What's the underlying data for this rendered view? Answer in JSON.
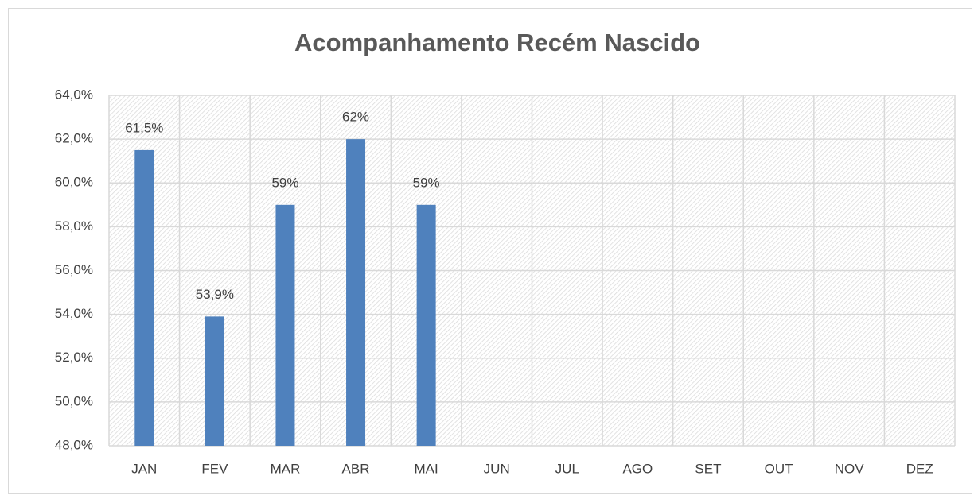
{
  "chart_data": {
    "type": "bar",
    "title": "Acompanhamento Recém Nascido",
    "categories": [
      "JAN",
      "FEV",
      "MAR",
      "ABR",
      "MAI",
      "JUN",
      "JUL",
      "AGO",
      "SET",
      "OUT",
      "NOV",
      "DEZ"
    ],
    "values": [
      61.5,
      53.9,
      59,
      62,
      59,
      null,
      null,
      null,
      null,
      null,
      null,
      null
    ],
    "value_labels": [
      "61,5%",
      "53,9%",
      "59%",
      "62%",
      "59%",
      null,
      null,
      null,
      null,
      null,
      null,
      null
    ],
    "color": "#4f81bd",
    "ylim": [
      48,
      64
    ],
    "yticks": [
      {
        "value": 48,
        "label": "48,0%"
      },
      {
        "value": 50,
        "label": "50,0%"
      },
      {
        "value": 52,
        "label": "52,0%"
      },
      {
        "value": 54,
        "label": "54,0%"
      },
      {
        "value": 56,
        "label": "56,0%"
      },
      {
        "value": 58,
        "label": "58,0%"
      },
      {
        "value": 60,
        "label": "60,0%"
      },
      {
        "value": 62,
        "label": "62,0%"
      },
      {
        "value": 64,
        "label": "64,0%"
      }
    ],
    "grid": true
  }
}
